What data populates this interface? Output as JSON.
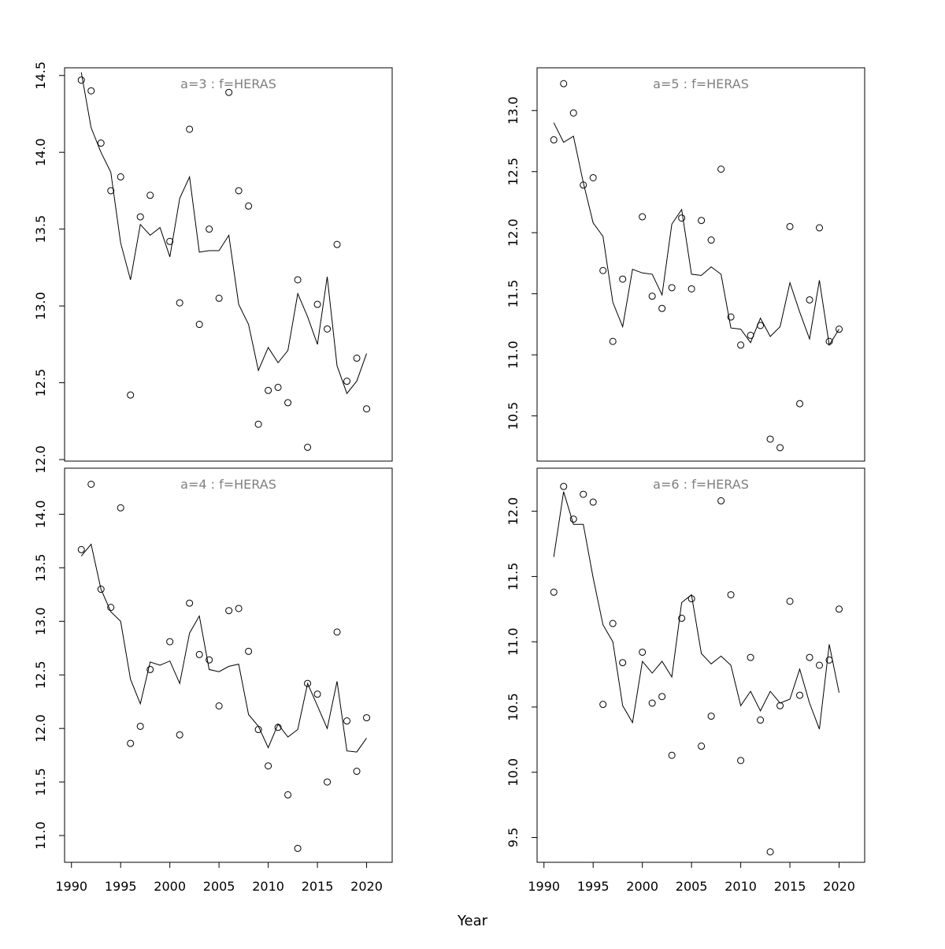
{
  "xlabel": "Year",
  "x_ticks": [
    1990,
    1995,
    2000,
    2005,
    2010,
    2015,
    2020
  ],
  "years": [
    1991,
    1992,
    1993,
    1994,
    1995,
    1996,
    1997,
    1998,
    1999,
    2000,
    2001,
    2002,
    2003,
    2004,
    2005,
    2006,
    2007,
    2008,
    2009,
    2010,
    2011,
    2012,
    2013,
    2014,
    2015,
    2016,
    2017,
    2018,
    2019,
    2020
  ],
  "chart_data": [
    {
      "type": "scatter",
      "title": "a=3  :  f=HERAS",
      "xlim": [
        1989.3,
        2022.6
      ],
      "ylim": [
        11.99,
        14.55
      ],
      "yticks": [
        12.0,
        12.5,
        13.0,
        13.5,
        14.0,
        14.5
      ],
      "observed": [
        14.47,
        14.4,
        14.06,
        13.75,
        13.84,
        12.42,
        13.58,
        13.72,
        null,
        13.42,
        13.02,
        14.15,
        12.88,
        13.5,
        13.05,
        14.39,
        13.75,
        13.65,
        12.23,
        12.45,
        12.47,
        12.37,
        13.17,
        12.08,
        13.01,
        12.85,
        13.4,
        12.51,
        12.66,
        12.33
      ],
      "fitted": [
        14.52,
        14.16,
        14.0,
        13.87,
        13.41,
        13.17,
        13.53,
        13.46,
        13.51,
        13.32,
        13.7,
        13.84,
        13.35,
        13.36,
        13.36,
        13.46,
        13.01,
        12.88,
        12.58,
        12.73,
        12.63,
        12.71,
        13.08,
        12.93,
        12.75,
        13.19,
        12.61,
        12.43,
        12.51,
        12.69
      ]
    },
    {
      "type": "scatter",
      "title": "a=5  :  f=HERAS",
      "xlim": [
        1989.3,
        2022.6
      ],
      "ylim": [
        10.13,
        13.35
      ],
      "yticks": [
        10.5,
        11.0,
        11.5,
        12.0,
        12.5,
        13.0
      ],
      "observed": [
        12.76,
        13.22,
        12.98,
        12.39,
        12.45,
        11.69,
        11.11,
        11.62,
        null,
        12.13,
        11.48,
        11.38,
        11.55,
        12.12,
        11.54,
        12.1,
        11.94,
        12.52,
        11.31,
        11.08,
        11.16,
        11.24,
        10.31,
        10.24,
        12.05,
        10.6,
        11.45,
        12.04,
        11.11,
        11.21
      ],
      "fitted": [
        12.9,
        12.74,
        12.79,
        12.41,
        12.08,
        11.97,
        11.43,
        11.23,
        11.7,
        11.67,
        11.66,
        11.49,
        12.07,
        12.19,
        11.66,
        11.65,
        11.72,
        11.66,
        11.22,
        11.21,
        11.1,
        11.3,
        11.15,
        11.23,
        11.59,
        11.35,
        11.13,
        11.61,
        11.08,
        11.21
      ]
    },
    {
      "type": "scatter",
      "title": "a=4  :  f=HERAS",
      "xlim": [
        1989.3,
        2022.6
      ],
      "ylim": [
        10.75,
        14.43
      ],
      "yticks": [
        11.0,
        11.5,
        12.0,
        12.5,
        13.0,
        13.5,
        14.0
      ],
      "observed": [
        13.67,
        14.28,
        13.3,
        13.13,
        14.06,
        11.86,
        12.02,
        12.55,
        null,
        12.81,
        11.94,
        13.17,
        12.69,
        12.64,
        12.21,
        13.1,
        13.12,
        12.72,
        11.99,
        11.65,
        12.01,
        11.38,
        10.88,
        12.42,
        12.32,
        11.5,
        12.9,
        12.07,
        11.6,
        12.1
      ],
      "fitted": [
        13.61,
        13.72,
        13.3,
        13.09,
        13.0,
        12.46,
        12.23,
        12.62,
        12.59,
        12.63,
        12.42,
        12.89,
        13.05,
        12.55,
        12.53,
        12.58,
        12.6,
        12.13,
        12.02,
        11.82,
        12.04,
        11.92,
        11.99,
        12.42,
        12.21,
        12.0,
        12.44,
        11.79,
        11.78,
        11.91
      ]
    },
    {
      "type": "scatter",
      "title": "a=6  :  f=HERAS",
      "xlim": [
        1989.3,
        2022.6
      ],
      "ylim": [
        9.31,
        12.33
      ],
      "yticks": [
        9.5,
        10.0,
        10.5,
        11.0,
        11.5,
        12.0
      ],
      "observed": [
        11.38,
        12.19,
        11.94,
        12.13,
        12.07,
        10.52,
        11.14,
        10.84,
        null,
        10.92,
        10.53,
        10.58,
        10.13,
        11.18,
        11.33,
        10.2,
        10.43,
        12.08,
        11.36,
        10.09,
        10.88,
        10.4,
        9.39,
        10.51,
        11.31,
        10.59,
        10.88,
        10.82,
        10.86,
        11.25
      ],
      "fitted": [
        11.65,
        12.15,
        11.9,
        11.9,
        11.49,
        11.13,
        11.0,
        10.51,
        10.38,
        10.85,
        10.76,
        10.85,
        10.73,
        11.3,
        11.36,
        10.91,
        10.83,
        10.89,
        10.82,
        10.51,
        10.62,
        10.47,
        10.62,
        10.53,
        10.56,
        10.79,
        10.53,
        10.33,
        10.98,
        10.61
      ]
    }
  ]
}
